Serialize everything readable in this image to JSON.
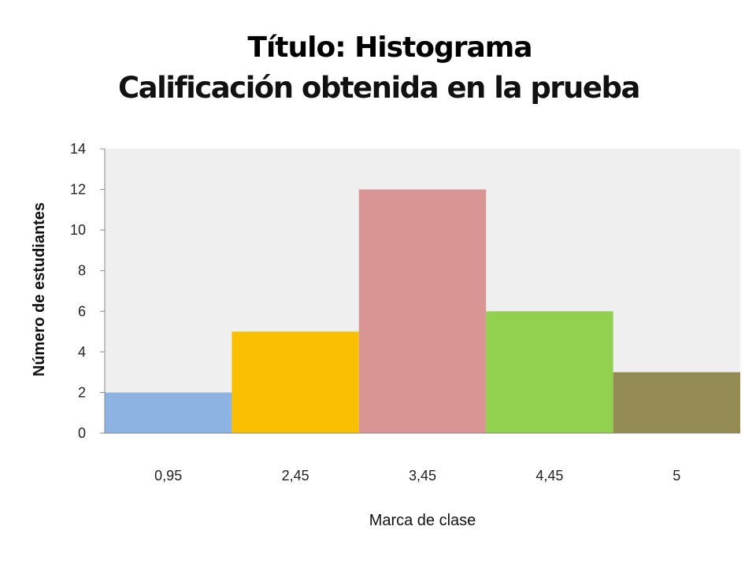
{
  "slide_title": "Título: Histograma",
  "chart_data": {
    "type": "bar",
    "title": "Calificación obtenida en la prueba",
    "xlabel": "Marca de clase",
    "ylabel": "Número de estudiantes",
    "categories": [
      "0,95",
      "2,45",
      "3,45",
      "4,45",
      "5"
    ],
    "values": [
      2,
      5,
      12,
      6,
      3
    ],
    "colors": [
      "#8db3e2",
      "#fac000",
      "#d99594",
      "#92d050",
      "#948a54"
    ],
    "ylim": [
      0,
      14
    ],
    "yticks": [
      "0",
      "2",
      "4",
      "6",
      "8",
      "10",
      "12",
      "14"
    ],
    "plot_background": "#efefef",
    "grid": false,
    "legend": "none"
  }
}
